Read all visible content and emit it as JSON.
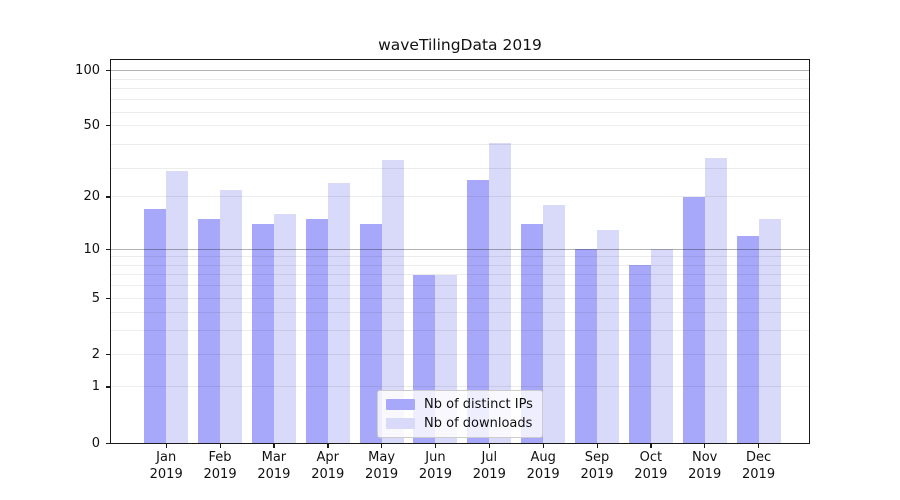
{
  "title": "waveTilingData 2019",
  "chart_data": {
    "type": "bar",
    "title": "waveTilingData 2019",
    "year_label": "2019",
    "categories": [
      "Jan",
      "Feb",
      "Mar",
      "Apr",
      "May",
      "Jun",
      "Jul",
      "Aug",
      "Sep",
      "Oct",
      "Nov",
      "Dec"
    ],
    "series": [
      {
        "name": "Nb of distinct IPs",
        "color": "#a8a8fa",
        "values": [
          17,
          15,
          14,
          15,
          14,
          7,
          25,
          14,
          10,
          8,
          20,
          12
        ]
      },
      {
        "name": "Nb of downloads",
        "color": "#d9d9fa",
        "values": [
          28,
          22,
          16,
          24,
          32,
          7,
          40,
          18,
          13,
          10,
          33,
          15
        ]
      }
    ],
    "y_axis": {
      "scale": "log10(1+v)",
      "ticks": [
        100,
        50,
        20,
        10,
        5,
        2,
        1,
        0
      ],
      "major_grid_values": [
        100,
        10
      ],
      "minor_grid_values": [
        50,
        20,
        5,
        2,
        1,
        3,
        4,
        6,
        7,
        8,
        9,
        29,
        39,
        59,
        69,
        79,
        89
      ],
      "range": [
        0,
        115
      ]
    },
    "legend_position": "lower center",
    "grid": true,
    "colors": {
      "axis": "#1a1a1a",
      "major_grid": "rgba(0,0,0,0.30)",
      "minor_grid": "rgba(0,0,0,0.075)"
    }
  }
}
